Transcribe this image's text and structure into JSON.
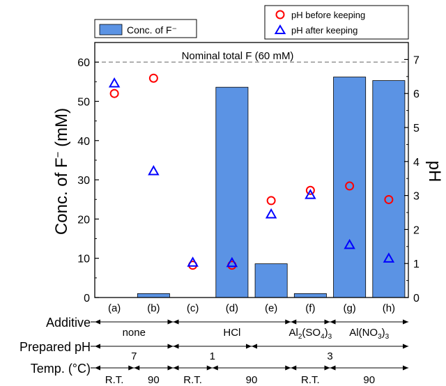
{
  "chart_data": {
    "type": "bar",
    "categories": [
      "(a)",
      "(b)",
      "(c)",
      "(d)",
      "(e)",
      "(f)",
      "(g)",
      "(h)"
    ],
    "series": [
      {
        "name": "Conc. of F⁻",
        "kind": "bar",
        "axis": "left",
        "color": "#5b93e4",
        "values": [
          0,
          1.0,
          0,
          53.6,
          8.6,
          1.0,
          56.2,
          55.3
        ]
      },
      {
        "name": "pH before keeping",
        "kind": "scatter",
        "marker": "circle",
        "axis": "right",
        "color": "#ff0000",
        "values": [
          6.0,
          6.45,
          0.95,
          0.95,
          2.85,
          3.15,
          3.28,
          2.88
        ]
      },
      {
        "name": "pH after keeping",
        "kind": "scatter",
        "marker": "triangle",
        "axis": "right",
        "color": "#0000ff",
        "values": [
          6.3,
          3.72,
          1.03,
          1.02,
          2.45,
          3.02,
          1.55,
          1.15
        ]
      }
    ],
    "ylabel_left_pre": "Conc. of F",
    "ylabel_left_post": " (mM)",
    "ylabel_right": "pH",
    "ylim_left": [
      0,
      65
    ],
    "ylim_right": [
      0,
      7.5
    ],
    "yticks_left": [
      0,
      10,
      20,
      30,
      40,
      50,
      60
    ],
    "yticks_right": [
      0,
      1,
      2,
      3,
      4,
      5,
      6,
      7
    ],
    "reference_line": {
      "value": 60,
      "label": "Nominal total F (60 mM)"
    },
    "legend_bar": "Conc. of F⁻",
    "legend_before": "pH before keeping",
    "legend_after": "pH after keeping",
    "conditions": {
      "additive": {
        "label": "Additive",
        "groups": [
          {
            "text": "none",
            "from": 0,
            "to": 2
          },
          {
            "text": "HCl",
            "from": 2,
            "to": 5
          },
          {
            "text": "Al",
            "sub": "2",
            "text2": "(SO",
            "sub2": "4",
            "text3": ")",
            "sub3": "3",
            "from": 5,
            "to": 6
          },
          {
            "text": "Al(NO",
            "sub": "3",
            "text2": ")",
            "sub2": "3",
            "from": 6,
            "to": 8
          }
        ]
      },
      "prepared_ph": {
        "label": "Prepared pH",
        "groups": [
          {
            "text": "7",
            "from": 0,
            "to": 2
          },
          {
            "text": "1",
            "from": 2,
            "to": 4
          },
          {
            "text": "3",
            "from": 4,
            "to": 8
          }
        ]
      },
      "temp": {
        "label": "Temp. (°C)",
        "groups": [
          {
            "text": "R.T.",
            "from": 0,
            "to": 1
          },
          {
            "text": "90",
            "from": 1,
            "to": 2
          },
          {
            "text": "R.T.",
            "from": 2,
            "to": 3
          },
          {
            "text": "90",
            "from": 3,
            "to": 5
          },
          {
            "text": "R.T.",
            "from": 5,
            "to": 6
          },
          {
            "text": "90",
            "from": 6,
            "to": 8
          }
        ]
      }
    }
  }
}
